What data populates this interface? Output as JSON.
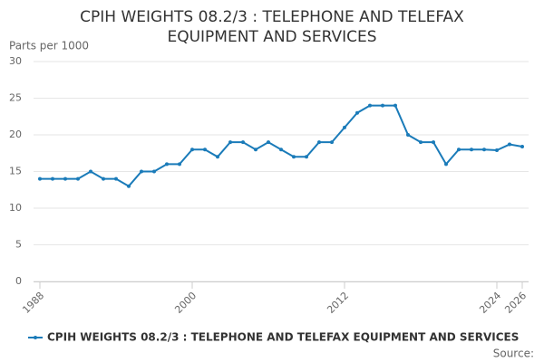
{
  "chart_data": {
    "type": "line",
    "title": "CPIH WEIGHTS 08.2/3 : TELEPHONE AND TELEFAX EQUIPMENT AND SERVICES",
    "y_label": "Parts per 1000",
    "source": "Source:",
    "x": [
      1988,
      1989,
      1990,
      1991,
      1992,
      1993,
      1994,
      1995,
      1996,
      1997,
      1998,
      1999,
      2000,
      2001,
      2002,
      2003,
      2004,
      2005,
      2006,
      2007,
      2008,
      2009,
      2010,
      2011,
      2012,
      2013,
      2014,
      2015,
      2016,
      2017,
      2018,
      2019,
      2020,
      2021,
      2022,
      2023,
      2024,
      2025,
      2026
    ],
    "series": [
      {
        "name": "CPIH WEIGHTS 08.2/3 : TELEPHONE AND TELEFAX EQUIPMENT AND SERVICES",
        "color": "#1a7bb9",
        "values": [
          14,
          14,
          14,
          14,
          15,
          14,
          14,
          13,
          15,
          15,
          16,
          16,
          18,
          18,
          17,
          19,
          19,
          18,
          19,
          18,
          17,
          17,
          19,
          19,
          21,
          23,
          24,
          24,
          24,
          20,
          19,
          19,
          16,
          18,
          18,
          18,
          17.9,
          18.7,
          18.4
        ]
      }
    ],
    "xlim": [
      1987.5,
      2026.5
    ],
    "xticks": [
      1988,
      2000,
      2012,
      2024,
      2026
    ],
    "ylim": [
      0,
      30
    ],
    "yticks": [
      0,
      5,
      10,
      15,
      20,
      25,
      30
    ],
    "grid": true
  }
}
